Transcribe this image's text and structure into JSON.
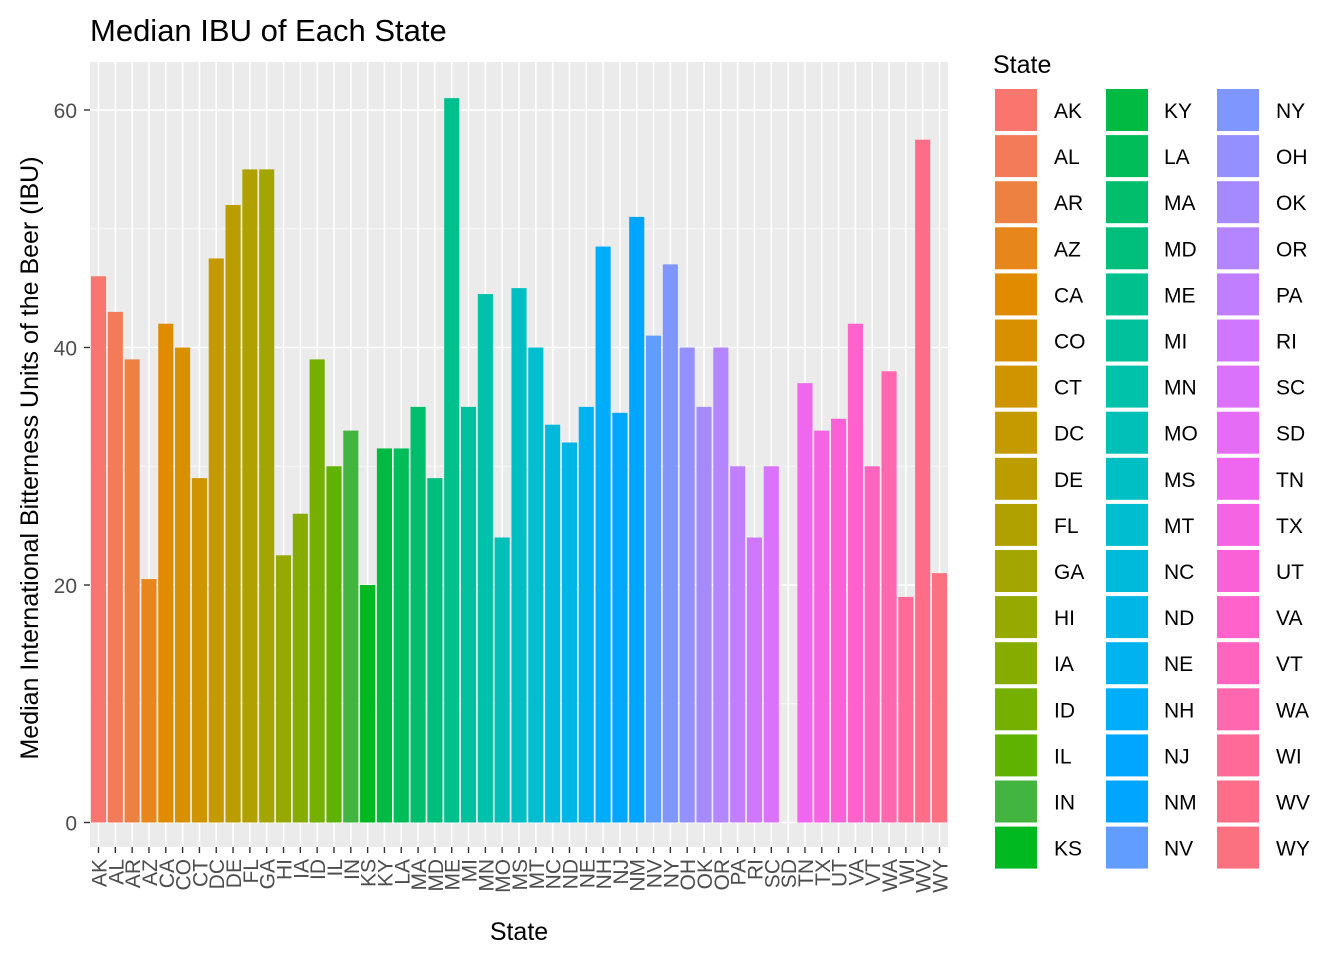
{
  "chart_data": {
    "type": "bar",
    "title": "Median IBU of Each State",
    "xlabel": "State",
    "ylabel": "Median International Bitterness Units of the Beer (IBU)",
    "ylim": [
      -3,
      64
    ],
    "yticks": [
      0,
      20,
      40,
      60
    ],
    "grid": true,
    "legend": {
      "title": "State",
      "placement": "right",
      "columns": 3
    },
    "categories": [
      "AK",
      "AL",
      "AR",
      "AZ",
      "CA",
      "CO",
      "CT",
      "DC",
      "DE",
      "FL",
      "GA",
      "HI",
      "IA",
      "ID",
      "IL",
      "IN",
      "KS",
      "KY",
      "LA",
      "MA",
      "MD",
      "ME",
      "MI",
      "MN",
      "MO",
      "MS",
      "MT",
      "NC",
      "ND",
      "NE",
      "NH",
      "NJ",
      "NM",
      "NV",
      "NY",
      "OH",
      "OK",
      "OR",
      "PA",
      "RI",
      "SC",
      "SD",
      "TN",
      "TX",
      "UT",
      "VA",
      "VT",
      "WA",
      "WI",
      "WV",
      "WY"
    ],
    "values": [
      46,
      43,
      39,
      20.5,
      42,
      40,
      29,
      47.5,
      52,
      55,
      55,
      22.5,
      26,
      39,
      30,
      33,
      20,
      31.5,
      31.5,
      35,
      29,
      61,
      35,
      44.5,
      24,
      45,
      40,
      33.5,
      32,
      35,
      48.5,
      34.5,
      51,
      41,
      47,
      40,
      35,
      40,
      30,
      24,
      30,
      null,
      37,
      33,
      34,
      42,
      30,
      38,
      19,
      57.5,
      21
    ],
    "colors": [
      "#F8766D",
      "#F37B59",
      "#ED8141",
      "#E7861B",
      "#E08B00",
      "#D89000",
      "#CF9400",
      "#C59900",
      "#BB9D00",
      "#B0A100",
      "#A3A500",
      "#95A900",
      "#86AC00",
      "#75AF00",
      "#5FB200",
      "#42B540",
      "#00B81F",
      "#00BA42",
      "#00BC59",
      "#00BE6C",
      "#00BF7D",
      "#00C08E",
      "#00C19C",
      "#00C1AA",
      "#00C0B8",
      "#00BFC4",
      "#00BDD0",
      "#00BADB",
      "#00B6E6",
      "#00B2F0",
      "#00ADFA",
      "#00A6FF",
      "#00A5FF",
      "#619CFF",
      "#7F96FF",
      "#9590FF",
      "#A58AFF",
      "#B385FF",
      "#C17FFF",
      "#CF78FF",
      "#DB72FB",
      "#E56DF5",
      "#EE67EE",
      "#F564E3",
      "#FB61D7",
      "#FF62CB",
      "#FF64BE",
      "#FF67AF",
      "#FF6A98",
      "#FF6D88",
      "#FC717F"
    ]
  }
}
